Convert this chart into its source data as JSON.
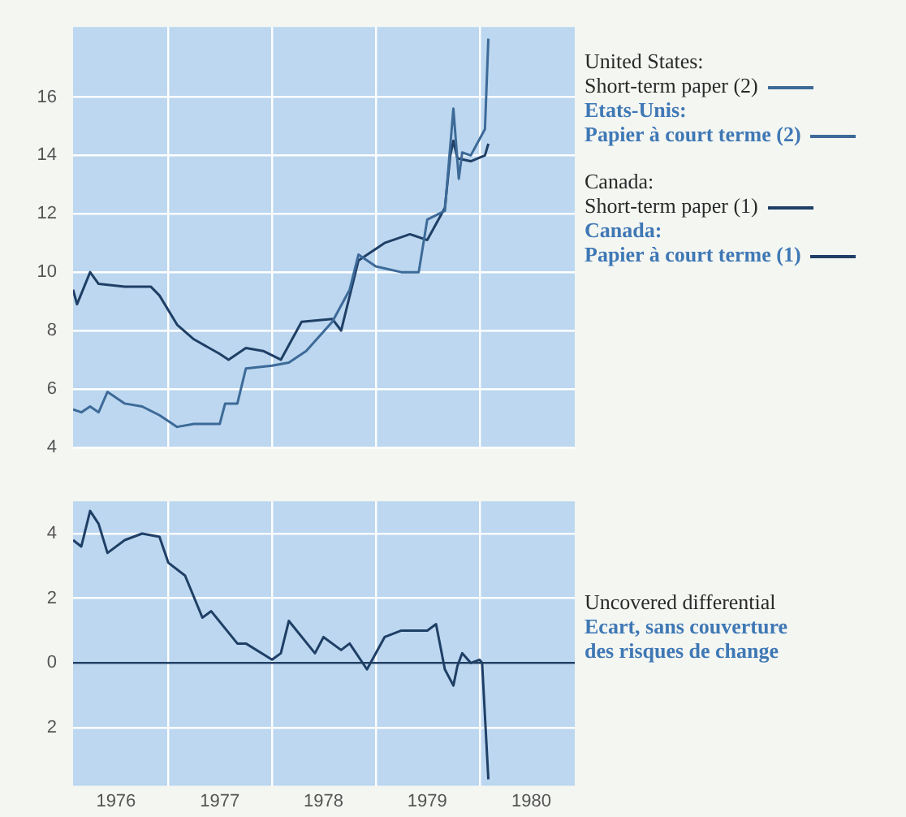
{
  "chart_data": [
    {
      "type": "line",
      "xlim": [
        "1976-02",
        "1980-12"
      ],
      "ylim": [
        4,
        18.4
      ],
      "yticks": [
        4,
        6,
        8,
        10,
        12,
        14,
        16
      ],
      "xticks": [
        {
          "value": "1977-01",
          "label": null
        },
        {
          "value": "1978-01",
          "label": null
        },
        {
          "value": "1979-01",
          "label": null
        },
        {
          "value": "1980-01",
          "label": null
        }
      ],
      "tick_labels": "y",
      "grid": true,
      "legend": "right",
      "marker": "none",
      "line_style": "solid",
      "series": [
        {
          "name": "United States:\nShort-term paper (2)\nEtats-Unis:\nPapier à court terme (2)",
          "color": "#3d6a98",
          "x": [
            "1976-02",
            "1976-03",
            "1976-04",
            "1976-05",
            "1976-06",
            "1976-08",
            "1976-10",
            "1976-12",
            "1977-02",
            "1977-04",
            "1977-07",
            "1977-07-20",
            "1977-09",
            "1977-10",
            "1978-01",
            "1978-03",
            "1978-05",
            "1978-08",
            "1978-10",
            "1978-11",
            "1979-01",
            "1979-04",
            "1979-06",
            "1979-07",
            "1979-09",
            "1979-10",
            "1979-10-20",
            "1979-11",
            "1979-12",
            "1980-01-20",
            "1980-02"
          ],
          "values": [
            5.3,
            5.2,
            5.4,
            5.2,
            5.9,
            5.5,
            5.4,
            5.1,
            4.7,
            4.8,
            4.8,
            5.5,
            5.5,
            6.7,
            6.8,
            6.9,
            7.3,
            8.3,
            9.4,
            10.6,
            10.2,
            10.0,
            10.0,
            11.8,
            12.1,
            15.6,
            13.2,
            14.1,
            14.0,
            14.9,
            18.0
          ]
        },
        {
          "name": "Canada:\nShort-term paper (1)\nCanada:\nPapier à court terme (1)",
          "color": "#1f3f66",
          "x": [
            "1976-02",
            "1976-02-15",
            "1976-04",
            "1976-05",
            "1976-08",
            "1976-11",
            "1976-12",
            "1977-02",
            "1977-04",
            "1977-07",
            "1977-08",
            "1977-10",
            "1977-12",
            "1978-02",
            "1978-04-15",
            "1978-08",
            "1978-09",
            "1978-11",
            "1979-02",
            "1979-05",
            "1979-07",
            "1979-09",
            "1979-09-20",
            "1979-10",
            "1979-10-15",
            "1979-12",
            "1980-01-20",
            "1980-02"
          ],
          "values": [
            9.4,
            8.9,
            10.0,
            9.6,
            9.5,
            9.5,
            9.2,
            8.2,
            7.7,
            7.2,
            7.0,
            7.4,
            7.3,
            7.0,
            8.3,
            8.4,
            8.0,
            10.4,
            11.0,
            11.3,
            11.1,
            12.2,
            14.0,
            14.5,
            13.9,
            13.8,
            14.0,
            14.4
          ]
        }
      ]
    },
    {
      "type": "line",
      "xlim": [
        "1976-02",
        "1980-12"
      ],
      "ylim": [
        -3.8,
        5
      ],
      "yticks": [
        {
          "value": -2,
          "label": "2"
        },
        0,
        2,
        4
      ],
      "xticks": [
        {
          "value": "1976-07",
          "label": "1976"
        },
        {
          "value": "1977-01",
          "label": null
        },
        {
          "value": "1977-07",
          "label": "1977"
        },
        {
          "value": "1978-01",
          "label": null
        },
        {
          "value": "1978-07",
          "label": "1978"
        },
        {
          "value": "1979-01",
          "label": null
        },
        {
          "value": "1979-07",
          "label": "1979"
        },
        {
          "value": "1980-01",
          "label": null
        },
        {
          "value": "1980-07",
          "label": "1980"
        }
      ],
      "grid": true,
      "marker": "none",
      "line_style": "solid",
      "ref_lines": [
        {
          "axis": "y",
          "value": 0,
          "color": "#1f3f66"
        }
      ],
      "series": [
        {
          "name": "Uncovered differential\nEcart, sans couverture\ndes risques de change",
          "color": "#1f3f66",
          "x": [
            "1976-02",
            "1976-03",
            "1976-04",
            "1976-05",
            "1976-06",
            "1976-08",
            "1976-10",
            "1976-12",
            "1977-01",
            "1977-03",
            "1977-05",
            "1977-06",
            "1977-09",
            "1977-10",
            "1978-01",
            "1978-02",
            "1978-03",
            "1978-06",
            "1978-07",
            "1978-09",
            "1978-10",
            "1978-12",
            "1979-02",
            "1979-04",
            "1979-07",
            "1979-08",
            "1979-09",
            "1979-10",
            "1979-10-15",
            "1979-11",
            "1979-12",
            "1980-01",
            "1980-01-10",
            "1980-02"
          ],
          "values": [
            3.8,
            3.6,
            4.7,
            4.3,
            3.4,
            3.8,
            4.0,
            3.9,
            3.1,
            2.7,
            1.4,
            1.6,
            0.6,
            0.6,
            0.1,
            0.3,
            1.3,
            0.3,
            0.8,
            0.4,
            0.6,
            -0.2,
            0.8,
            1.0,
            1.0,
            1.2,
            -0.2,
            -0.7,
            -0.1,
            0.3,
            0.0,
            0.1,
            0.0,
            -3.6
          ]
        }
      ]
    }
  ]
}
